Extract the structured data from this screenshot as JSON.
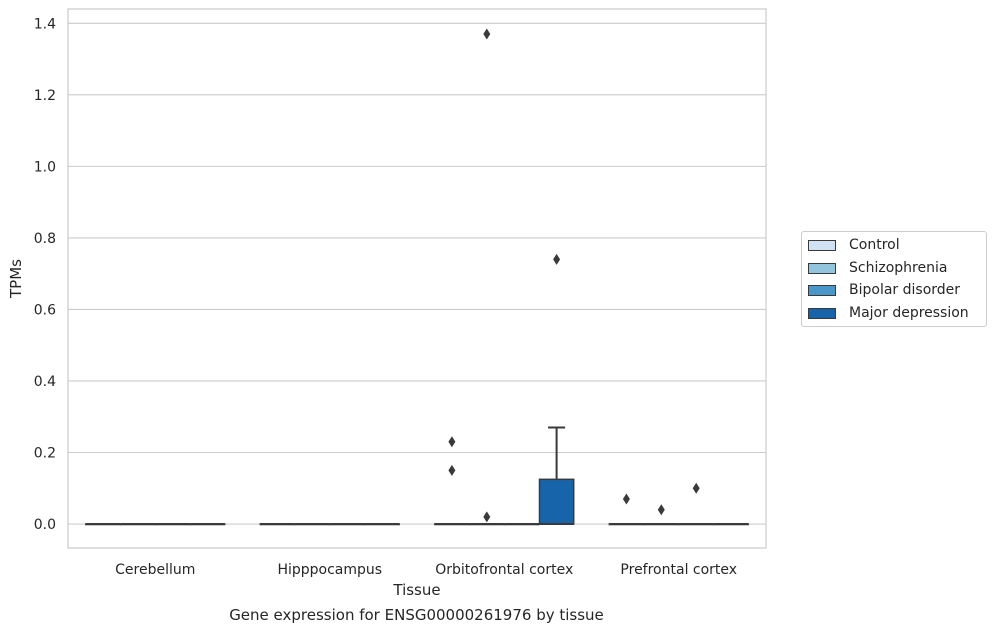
{
  "chart_data": {
    "type": "box",
    "title": "",
    "caption": "Gene expression for ENSG00000261976 by tissue",
    "xlabel": "Tissue",
    "ylabel": "TPMs",
    "ylim": [
      -0.067,
      1.44
    ],
    "yticks": [
      0.0,
      0.2,
      0.4,
      0.6,
      0.8,
      1.0,
      1.2,
      1.4
    ],
    "ytick_labels": [
      "0.0",
      "0.2",
      "0.4",
      "0.6",
      "0.8",
      "1.0",
      "1.2",
      "1.4"
    ],
    "grid": true,
    "legend_position": "right",
    "categories": [
      "Cerebellum",
      "Hipppocampus",
      "Orbitofrontal cortex",
      "Prefrontal cortex"
    ],
    "series": [
      {
        "name": "Control",
        "color": "#cfe1f2",
        "boxes": [
          {
            "q1": 0,
            "median": 0,
            "q3": 0,
            "whisker_low": 0,
            "whisker_high": 0,
            "outliers": []
          },
          {
            "q1": 0,
            "median": 0,
            "q3": 0,
            "whisker_low": 0,
            "whisker_high": 0,
            "outliers": []
          },
          {
            "q1": 0,
            "median": 0,
            "q3": 0,
            "whisker_low": 0,
            "whisker_high": 0,
            "outliers": [
              0.15,
              0.23
            ]
          },
          {
            "q1": 0,
            "median": 0,
            "q3": 0,
            "whisker_low": 0,
            "whisker_high": 0,
            "outliers": [
              0.07
            ]
          }
        ]
      },
      {
        "name": "Schizophrenia",
        "color": "#93c4de",
        "boxes": [
          {
            "q1": 0,
            "median": 0,
            "q3": 0,
            "whisker_low": 0,
            "whisker_high": 0,
            "outliers": []
          },
          {
            "q1": 0,
            "median": 0,
            "q3": 0,
            "whisker_low": 0,
            "whisker_high": 0,
            "outliers": []
          },
          {
            "q1": 0,
            "median": 0,
            "q3": 0,
            "whisker_low": 0,
            "whisker_high": 0,
            "outliers": [
              0.02,
              1.37
            ]
          },
          {
            "q1": 0,
            "median": 0,
            "q3": 0,
            "whisker_low": 0,
            "whisker_high": 0,
            "outliers": [
              0.04
            ]
          }
        ]
      },
      {
        "name": "Bipolar disorder",
        "color": "#4a98c9",
        "boxes": [
          {
            "q1": 0,
            "median": 0,
            "q3": 0,
            "whisker_low": 0,
            "whisker_high": 0,
            "outliers": []
          },
          {
            "q1": 0,
            "median": 0,
            "q3": 0,
            "whisker_low": 0,
            "whisker_high": 0,
            "outliers": []
          },
          {
            "q1": 0,
            "median": 0,
            "q3": 0,
            "whisker_low": 0,
            "whisker_high": 0,
            "outliers": []
          },
          {
            "q1": 0,
            "median": 0,
            "q3": 0,
            "whisker_low": 0,
            "whisker_high": 0,
            "outliers": [
              0.1
            ]
          }
        ]
      },
      {
        "name": "Major depression",
        "color": "#1764ab",
        "boxes": [
          {
            "q1": 0,
            "median": 0,
            "q3": 0,
            "whisker_low": 0,
            "whisker_high": 0,
            "outliers": []
          },
          {
            "q1": 0,
            "median": 0,
            "q3": 0,
            "whisker_low": 0,
            "whisker_high": 0,
            "outliers": []
          },
          {
            "q1": 0,
            "median": 0,
            "q3": 0.125,
            "whisker_low": 0,
            "whisker_high": 0.27,
            "outliers": [
              0.74
            ]
          },
          {
            "q1": 0,
            "median": 0,
            "q3": 0,
            "whisker_low": 0,
            "whisker_high": 0,
            "outliers": []
          }
        ]
      }
    ]
  }
}
